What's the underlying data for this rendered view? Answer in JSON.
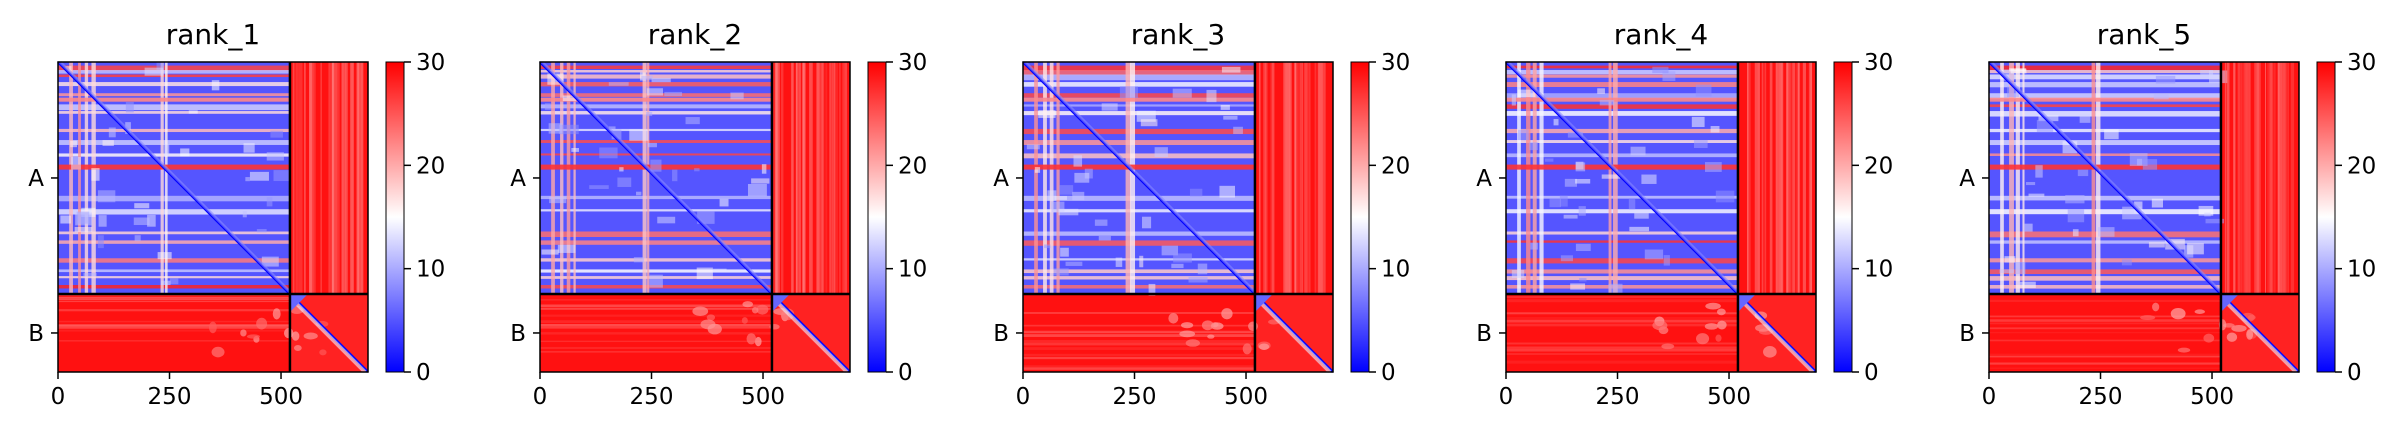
{
  "chart_data": [
    {
      "type": "heatmap",
      "title": "rank_1",
      "x_ticks": [
        "0",
        "250",
        "500"
      ],
      "y_ticks": [
        "A",
        "B"
      ],
      "chains": [
        {
          "name": "A",
          "length": 520
        },
        {
          "name": "B",
          "length": 175
        }
      ],
      "colorbar": {
        "min": 0,
        "max": 30,
        "ticks": [
          "0",
          "10",
          "20",
          "30"
        ],
        "colormap": "bwr"
      }
    },
    {
      "type": "heatmap",
      "title": "rank_2",
      "x_ticks": [
        "0",
        "250",
        "500"
      ],
      "y_ticks": [
        "A",
        "B"
      ],
      "chains": [
        {
          "name": "A",
          "length": 520
        },
        {
          "name": "B",
          "length": 175
        }
      ],
      "colorbar": {
        "min": 0,
        "max": 30,
        "ticks": [
          "0",
          "10",
          "20",
          "30"
        ],
        "colormap": "bwr"
      }
    },
    {
      "type": "heatmap",
      "title": "rank_3",
      "x_ticks": [
        "0",
        "250",
        "500"
      ],
      "y_ticks": [
        "A",
        "B"
      ],
      "chains": [
        {
          "name": "A",
          "length": 520
        },
        {
          "name": "B",
          "length": 175
        }
      ],
      "colorbar": {
        "min": 0,
        "max": 30,
        "ticks": [
          "0",
          "10",
          "20",
          "30"
        ],
        "colormap": "bwr"
      }
    },
    {
      "type": "heatmap",
      "title": "rank_4",
      "x_ticks": [
        "0",
        "250",
        "500"
      ],
      "y_ticks": [
        "A",
        "B"
      ],
      "chains": [
        {
          "name": "A",
          "length": 520
        },
        {
          "name": "B",
          "length": 175
        }
      ],
      "colorbar": {
        "min": 0,
        "max": 30,
        "ticks": [
          "0",
          "10",
          "20",
          "30"
        ],
        "colormap": "bwr"
      }
    },
    {
      "type": "heatmap",
      "title": "rank_5",
      "x_ticks": [
        "0",
        "250",
        "500"
      ],
      "y_ticks": [
        "A",
        "B"
      ],
      "chains": [
        {
          "name": "A",
          "length": 520
        },
        {
          "name": "B",
          "length": 175
        }
      ],
      "colorbar": {
        "min": 0,
        "max": 30,
        "ticks": [
          "0",
          "10",
          "20",
          "30"
        ],
        "colormap": "bwr"
      }
    }
  ],
  "colors": {
    "low": "#0000ff",
    "mid": "#ffffff",
    "high": "#ff0000",
    "border": "#000000"
  }
}
